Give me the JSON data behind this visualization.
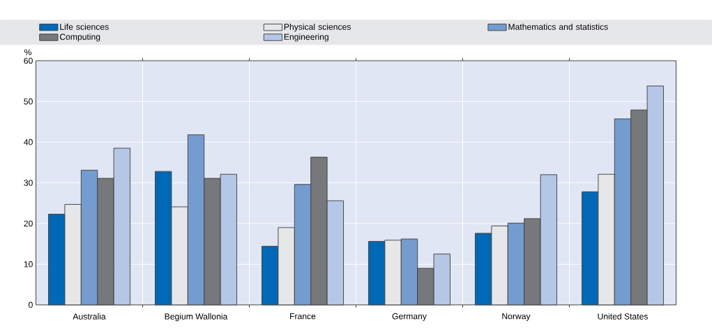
{
  "chart_data": {
    "type": "bar",
    "ylabel": "%",
    "categories": [
      "Australia",
      "Begium Wallonia",
      "France",
      "Germany",
      "Norway",
      "United States"
    ],
    "series": [
      {
        "name": "Life sciences",
        "color": "#0068b5",
        "values": [
          22.3,
          32.8,
          14.4,
          15.6,
          17.6,
          27.8
        ]
      },
      {
        "name": "Physical sciences",
        "color": "#e6e7e9",
        "values": [
          24.7,
          24.1,
          19.0,
          15.9,
          19.4,
          32.1
        ]
      },
      {
        "name": "Mathematics and statistics",
        "color": "#749ccf",
        "values": [
          33.1,
          41.8,
          29.6,
          16.2,
          20.1,
          45.7
        ]
      },
      {
        "name": "Computing",
        "color": "#77787c",
        "values": [
          31.1,
          31.1,
          36.3,
          9.0,
          21.2,
          47.9
        ]
      },
      {
        "name": "Engineering",
        "color": "#b5c7e6",
        "values": [
          38.5,
          32.1,
          25.6,
          12.5,
          32.0,
          53.8
        ]
      }
    ],
    "ylim": [
      0,
      60
    ],
    "yticks": [
      0,
      10,
      20,
      30,
      40,
      50,
      60
    ],
    "grid": true,
    "legend": "top"
  }
}
